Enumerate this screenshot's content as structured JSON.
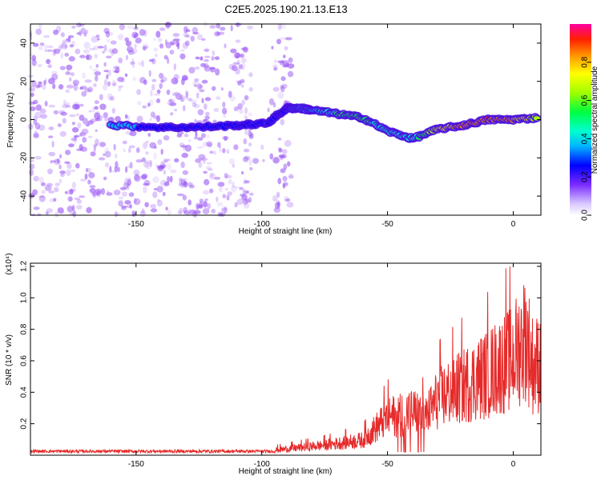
{
  "title": "C2E5.2025.190.21.13.E13",
  "colors": {
    "snr_line": "#e62a2a",
    "background": "#ffffff",
    "noise": "#9b59f5",
    "colormap": [
      "#ffffff",
      "#a0a0ff",
      "#0000ff",
      "#00ccff",
      "#00ff80",
      "#80ff00",
      "#ffff00",
      "#ff8000",
      "#ff0000",
      "#ff00ff"
    ]
  },
  "chart_data": [
    {
      "type": "heatmap",
      "panel": "spectrogram",
      "xlabel": "Height of straight line (km)",
      "ylabel": "Frequency (Hz)",
      "xlim": [
        -192,
        11
      ],
      "ylim": [
        -50,
        50
      ],
      "x_ticks": [
        -150,
        -100,
        -50,
        0
      ],
      "y_ticks": [
        40,
        20,
        0,
        -20,
        -40
      ],
      "colorbar": {
        "label": "Normalized spectral amplitude",
        "range": [
          0.0,
          1.0
        ],
        "ticks": [
          "0.0",
          "0.2",
          "0.4",
          "0.6",
          "0.8"
        ]
      },
      "ridge": {
        "description_points": [
          {
            "x": -160,
            "y": -3,
            "amp": 0.4
          },
          {
            "x": -140,
            "y": -4,
            "amp": 0.3
          },
          {
            "x": -125,
            "y": -4,
            "amp": 0.2
          },
          {
            "x": -110,
            "y": -3,
            "amp": 0.3
          },
          {
            "x": -98,
            "y": -2,
            "amp": 0.35
          },
          {
            "x": -90,
            "y": 6,
            "amp": 0.3
          },
          {
            "x": -85,
            "y": 6,
            "amp": 0.45
          },
          {
            "x": -80,
            "y": 5,
            "amp": 0.4
          },
          {
            "x": -70,
            "y": 3,
            "amp": 0.55
          },
          {
            "x": -60,
            "y": 1,
            "amp": 0.6
          },
          {
            "x": -50,
            "y": -6,
            "amp": 0.45
          },
          {
            "x": -40,
            "y": -10,
            "amp": 0.5
          },
          {
            "x": -30,
            "y": -5,
            "amp": 0.75
          },
          {
            "x": -20,
            "y": -3,
            "amp": 0.9
          },
          {
            "x": -10,
            "y": 0,
            "amp": 0.95
          },
          {
            "x": 0,
            "y": 0,
            "amp": 0.85
          },
          {
            "x": 10,
            "y": 1,
            "amp": 0.7
          }
        ]
      }
    },
    {
      "type": "line",
      "panel": "snr",
      "title": "",
      "xlabel": "Height of straight line (km)",
      "ylabel": "SNR (10 * v/v)",
      "y_scale_label": "(x10⁴)",
      "xlim": [
        -192,
        11
      ],
      "ylim": [
        0,
        1.22
      ],
      "x_ticks": [
        -150,
        -100,
        -50,
        0
      ],
      "y_ticks": [
        0.2,
        0.4,
        0.6,
        0.8,
        1.0,
        1.2
      ],
      "series": [
        {
          "color": "#e62a2a",
          "envelope": [
            {
              "x": -192,
              "y": 0.02
            },
            {
              "x": -150,
              "y": 0.02
            },
            {
              "x": -100,
              "y": 0.03
            },
            {
              "x": -90,
              "y": 0.05
            },
            {
              "x": -75,
              "y": 0.08
            },
            {
              "x": -60,
              "y": 0.12
            },
            {
              "x": -50,
              "y": 0.3
            },
            {
              "x": -40,
              "y": 0.35
            },
            {
              "x": -35,
              "y": 0.3
            },
            {
              "x": -30,
              "y": 0.45
            },
            {
              "x": -20,
              "y": 0.55
            },
            {
              "x": -10,
              "y": 0.65
            },
            {
              "x": 0,
              "y": 0.78
            },
            {
              "x": 5,
              "y": 0.95
            },
            {
              "x": 8,
              "y": 0.7
            },
            {
              "x": 11,
              "y": 0.75
            }
          ]
        }
      ]
    }
  ]
}
